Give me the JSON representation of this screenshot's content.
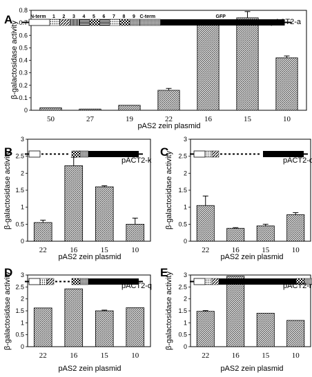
{
  "figure": {
    "panels": [
      {
        "id": "A",
        "label": "A",
        "construct": "pACT2-a",
        "xlabel": "pAS2 zein plasmid",
        "ylabel": "β-galactosidase activity"
      },
      {
        "id": "B",
        "label": "B",
        "construct": "pACT2-k",
        "xlabel": "pAS2 zein plasmid",
        "ylabel": "β-galactosidase activity"
      },
      {
        "id": "C",
        "label": "C",
        "construct": "pACT2-o",
        "xlabel": "pAS2 zein plasmid",
        "ylabel": "β-galactosidase activity"
      },
      {
        "id": "D",
        "label": "D",
        "construct": "pACT2-q",
        "xlabel": "pAS2 zein plasmid",
        "ylabel": "β-galactosidase activity"
      },
      {
        "id": "E",
        "label": "E",
        "construct": "pACT2-r",
        "xlabel": "pAS2 zein plasmid",
        "ylabel": "β-galactosidase activity"
      }
    ],
    "diagram_labels": {
      "nterm": "N-term",
      "repeats": [
        "1",
        "2",
        "3",
        "4",
        "5",
        "6",
        "7",
        "8",
        "9"
      ],
      "cterm": "C-term",
      "gfp": "GFP"
    }
  },
  "chart_data": [
    {
      "type": "bar",
      "panel": "A",
      "title": "pACT2-a",
      "xlabel": "pAS2 zein plasmid",
      "ylabel": "β-galactosidase activity",
      "categories": [
        "50",
        "27",
        "19",
        "22",
        "16",
        "15",
        "10"
      ],
      "values": [
        0.02,
        0.01,
        0.04,
        0.16,
        0.72,
        0.74,
        0.42
      ],
      "errors": [
        0,
        0,
        0,
        0.015,
        0,
        0.05,
        0.015
      ],
      "ylim": [
        0,
        0.8
      ],
      "yticks": [
        "0",
        "0.1",
        "0.2",
        "0.3",
        "0.4",
        "0.5",
        "0.6",
        "0.7",
        "0.8"
      ],
      "grid": false
    },
    {
      "type": "bar",
      "panel": "B",
      "title": "pACT2-k",
      "xlabel": "pAS2 zein plasmid",
      "ylabel": "β-galactosidase activity",
      "categories": [
        "22",
        "16",
        "15",
        "10"
      ],
      "values": [
        0.55,
        2.22,
        1.6,
        0.5
      ],
      "errors": [
        0.07,
        0.25,
        0.03,
        0.18
      ],
      "ylim": [
        0,
        3
      ],
      "yticks": [
        "0",
        "0.5",
        "1",
        "1.5",
        "2",
        "2.5",
        "3"
      ],
      "grid": false
    },
    {
      "type": "bar",
      "panel": "C",
      "title": "pACT2-o",
      "xlabel": "pAS2 zein plasmid",
      "ylabel": "β-galactosidase activity",
      "categories": [
        "22",
        "16",
        "15",
        "10"
      ],
      "values": [
        1.05,
        0.38,
        0.45,
        0.78
      ],
      "errors": [
        0.28,
        0.02,
        0.05,
        0.06
      ],
      "ylim": [
        0,
        3
      ],
      "yticks": [
        "0",
        "0.5",
        "1",
        "1.5",
        "2",
        "2.5",
        "3"
      ],
      "grid": false
    },
    {
      "type": "bar",
      "panel": "D",
      "title": "pACT2-q",
      "xlabel": "pAS2 zein plasmid",
      "ylabel": "β-galactosidase activity",
      "categories": [
        "22",
        "16",
        "15",
        "10"
      ],
      "values": [
        1.62,
        2.42,
        1.5,
        1.63
      ],
      "errors": [
        0,
        0,
        0.03,
        0
      ],
      "ylim": [
        0,
        3
      ],
      "yticks": [
        "0",
        "0.5",
        "1",
        "1.5",
        "2",
        "2.5",
        "3"
      ],
      "grid": false
    },
    {
      "type": "bar",
      "panel": "E",
      "title": "pACT2-r",
      "xlabel": "pAS2 zein plasmid",
      "ylabel": "β-galactosidase activity",
      "categories": [
        "22",
        "16",
        "15",
        "10"
      ],
      "values": [
        1.48,
        2.95,
        1.4,
        1.1
      ],
      "errors": [
        0.03,
        0,
        0,
        0
      ],
      "ylim": [
        0,
        3
      ],
      "yticks": [
        "0",
        "0.5",
        "1",
        "1.5",
        "2",
        "2.5",
        "3"
      ],
      "grid": false
    }
  ]
}
